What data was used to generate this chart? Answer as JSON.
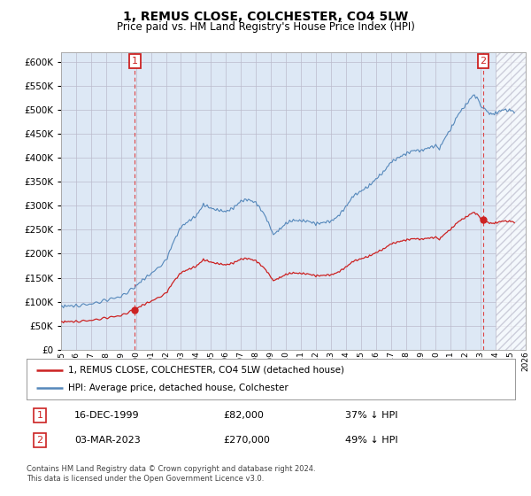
{
  "title": "1, REMUS CLOSE, COLCHESTER, CO4 5LW",
  "subtitle": "Price paid vs. HM Land Registry's House Price Index (HPI)",
  "hpi_color": "#5588bb",
  "price_color": "#cc2222",
  "bg_fill_color": "#dde8f5",
  "background_color": "#ffffff",
  "grid_color": "#bbbbcc",
  "ylim": [
    0,
    620000
  ],
  "yticks": [
    0,
    50000,
    100000,
    150000,
    200000,
    250000,
    300000,
    350000,
    400000,
    450000,
    500000,
    550000,
    600000
  ],
  "legend_hpi_label": "HPI: Average price, detached house, Colchester",
  "legend_price_label": "1, REMUS CLOSE, COLCHESTER, CO4 5LW (detached house)",
  "sale1_info": "16-DEC-1999",
  "sale1_amount": "£82,000",
  "sale1_hpi": "37% ↓ HPI",
  "sale2_info": "03-MAR-2023",
  "sale2_amount": "£270,000",
  "sale2_hpi": "49% ↓ HPI",
  "footer": "Contains HM Land Registry data © Crown copyright and database right 2024.\nThis data is licensed under the Open Government Licence v3.0.",
  "sale1_price": 82000,
  "sale2_price": 270000
}
